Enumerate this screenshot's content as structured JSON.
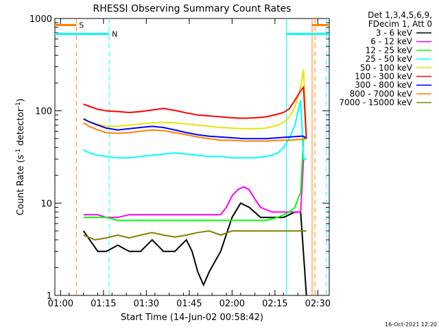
{
  "chart_data": {
    "type": "line",
    "title": "RHESSI Observing Summary Count Rates",
    "xlabel": "Start Time (14-Jun-02 00:58:42)",
    "ylabel_main": "Count Rate (s",
    "ylabel_sup1": "-1",
    "ylabel_mid": " detector",
    "ylabel_sup2": "-1",
    "ylabel_end": ")",
    "y_scale": "log",
    "ylim": [
      1,
      1000
    ],
    "xlim_minutes": [
      -2,
      40
    ],
    "x_ticks": [
      {
        "min": 0,
        "label": "01:00"
      },
      {
        "min": 15,
        "label": "01:15"
      },
      {
        "min": 30,
        "label": "01:30"
      },
      {
        "min": 45,
        "label": "01:45"
      },
      {
        "min": 60,
        "label": "02:00"
      },
      {
        "min": 75,
        "label": "02:15"
      },
      {
        "min": 90,
        "label": "02:30"
      }
    ],
    "x_ticks_note": "",
    "y_ticks": [
      {
        "v": 1,
        "label": "1"
      },
      {
        "v": 10,
        "label": "10"
      },
      {
        "v": 100,
        "label": "100"
      },
      {
        "v": 1000,
        "label": "1000"
      }
    ],
    "legend": {
      "header1": "Det 1,3,4,5,6,9,",
      "header2": "FDecim 1, Att 0"
    },
    "series": [
      {
        "name": "3 - 6 keV",
        "color": "#000000",
        "x": [
          8,
          13,
          16,
          20,
          24,
          28,
          32,
          36,
          40,
          44,
          46,
          48,
          50,
          52,
          56,
          60,
          63,
          66,
          70,
          74,
          78,
          82,
          84,
          86
        ],
        "y": [
          5,
          3,
          3,
          3.5,
          3,
          3,
          4,
          3,
          3,
          4,
          3,
          1.8,
          1.3,
          1.8,
          3,
          7,
          10,
          9,
          7,
          7,
          7,
          8,
          8,
          1
        ]
      },
      {
        "name": "6 - 12 keV",
        "color": "#ff00ff",
        "x": [
          8,
          13,
          16,
          20,
          24,
          28,
          32,
          36,
          40,
          44,
          48,
          52,
          56,
          58,
          60,
          62,
          64,
          66,
          68,
          70,
          74,
          78,
          82,
          84,
          85,
          86
        ],
        "y": [
          7.5,
          7.5,
          7,
          7,
          7.5,
          7.5,
          7.5,
          7.5,
          7.5,
          7.5,
          7.5,
          7.5,
          7.5,
          9,
          12,
          14,
          15,
          14,
          11,
          9,
          8,
          8,
          8,
          8,
          30,
          30
        ]
      },
      {
        "name": "12 - 25 keV",
        "color": "#00ff00",
        "x": [
          8,
          13,
          16,
          20,
          24,
          28,
          32,
          36,
          40,
          44,
          48,
          52,
          56,
          60,
          64,
          68,
          72,
          76,
          80,
          82,
          83,
          84,
          85,
          86
        ],
        "y": [
          7,
          7,
          7,
          6.5,
          6.5,
          6.5,
          6.5,
          6.5,
          6.5,
          6.5,
          6.5,
          6.5,
          6.5,
          6.5,
          6.5,
          6.5,
          6.5,
          7,
          8,
          9,
          11,
          13,
          50,
          50
        ]
      },
      {
        "name": "25 - 50 keV",
        "color": "#00ffff",
        "x": [
          8,
          10,
          13,
          16,
          20,
          24,
          28,
          32,
          36,
          40,
          44,
          48,
          52,
          56,
          60,
          64,
          68,
          72,
          74,
          76,
          78,
          80,
          82,
          84,
          85,
          86
        ],
        "y": [
          38,
          35,
          33,
          32,
          31,
          31,
          32,
          33,
          34,
          35,
          34,
          33,
          32,
          32,
          31,
          31,
          31,
          32,
          33,
          35,
          40,
          50,
          70,
          130,
          30,
          30
        ]
      },
      {
        "name": "50 - 100 keV",
        "color": "#e6e600",
        "x": [
          8,
          10,
          13,
          16,
          20,
          24,
          28,
          32,
          36,
          40,
          44,
          48,
          52,
          56,
          60,
          64,
          68,
          72,
          76,
          78,
          80,
          82,
          84,
          85,
          86
        ],
        "y": [
          80,
          76,
          72,
          68,
          68,
          70,
          72,
          74,
          75,
          74,
          72,
          70,
          68,
          66,
          65,
          64,
          64,
          65,
          70,
          75,
          85,
          110,
          180,
          280,
          50
        ]
      },
      {
        "name": "100 - 300 keV",
        "color": "#ff0000",
        "x": [
          8,
          10,
          13,
          16,
          20,
          24,
          28,
          32,
          36,
          40,
          44,
          48,
          52,
          56,
          60,
          64,
          68,
          72,
          76,
          78,
          80,
          82,
          84,
          85,
          86
        ],
        "y": [
          118,
          112,
          104,
          100,
          98,
          96,
          98,
          102,
          106,
          101,
          95,
          90,
          88,
          86,
          84,
          83,
          84,
          86,
          92,
          96,
          105,
          130,
          165,
          180,
          50
        ]
      },
      {
        "name": "300 - 800 keV",
        "color": "#0000ff",
        "x": [
          8,
          10,
          13,
          16,
          20,
          24,
          28,
          32,
          36,
          40,
          44,
          48,
          52,
          56,
          60,
          64,
          68,
          72,
          76,
          80,
          84,
          85,
          86
        ],
        "y": [
          82,
          76,
          70,
          65,
          62,
          64,
          66,
          68,
          66,
          62,
          58,
          55,
          53,
          52,
          51,
          50,
          50,
          50,
          51,
          52,
          53,
          53,
          50
        ]
      },
      {
        "name": "800 - 7000 keV",
        "color": "#ff8000",
        "x": [
          8,
          10,
          13,
          16,
          20,
          24,
          28,
          32,
          36,
          40,
          44,
          48,
          52,
          56,
          60,
          64,
          68,
          72,
          76,
          80,
          84,
          85,
          86
        ],
        "y": [
          74,
          68,
          62,
          58,
          57,
          58,
          60,
          62,
          61,
          58,
          55,
          52,
          50,
          48,
          48,
          47,
          47,
          47,
          48,
          48,
          49,
          49,
          50
        ]
      },
      {
        "name": "7000 - 15000 keV",
        "color": "#808000",
        "x": [
          8,
          12,
          16,
          20,
          24,
          28,
          32,
          36,
          40,
          44,
          48,
          52,
          56,
          60,
          64,
          68,
          72,
          76,
          80,
          84,
          86
        ],
        "y": [
          4.5,
          4,
          4.2,
          4.5,
          4.2,
          4.5,
          4.8,
          4.5,
          4.3,
          4.5,
          4.8,
          5,
          4.5,
          5,
          5,
          5,
          5,
          5,
          5,
          5,
          5
        ]
      }
    ],
    "markers": [
      {
        "label": "S",
        "color": "#ff8000",
        "x_start": -2,
        "x_end": 5.5,
        "y": 850,
        "dash_x": [
          5.5,
          89
        ],
        "solid_x": 88,
        "right_start": 88,
        "right_end": 96
      },
      {
        "label": "N",
        "color": "#00ffff",
        "x_start": -2,
        "x_end": 17,
        "y": 680,
        "dash_x": [
          17,
          93
        ],
        "solid_x": 79,
        "right_start": 79,
        "right_end": 96
      }
    ]
  },
  "timestamp": "16-Oct-2021 12:20"
}
